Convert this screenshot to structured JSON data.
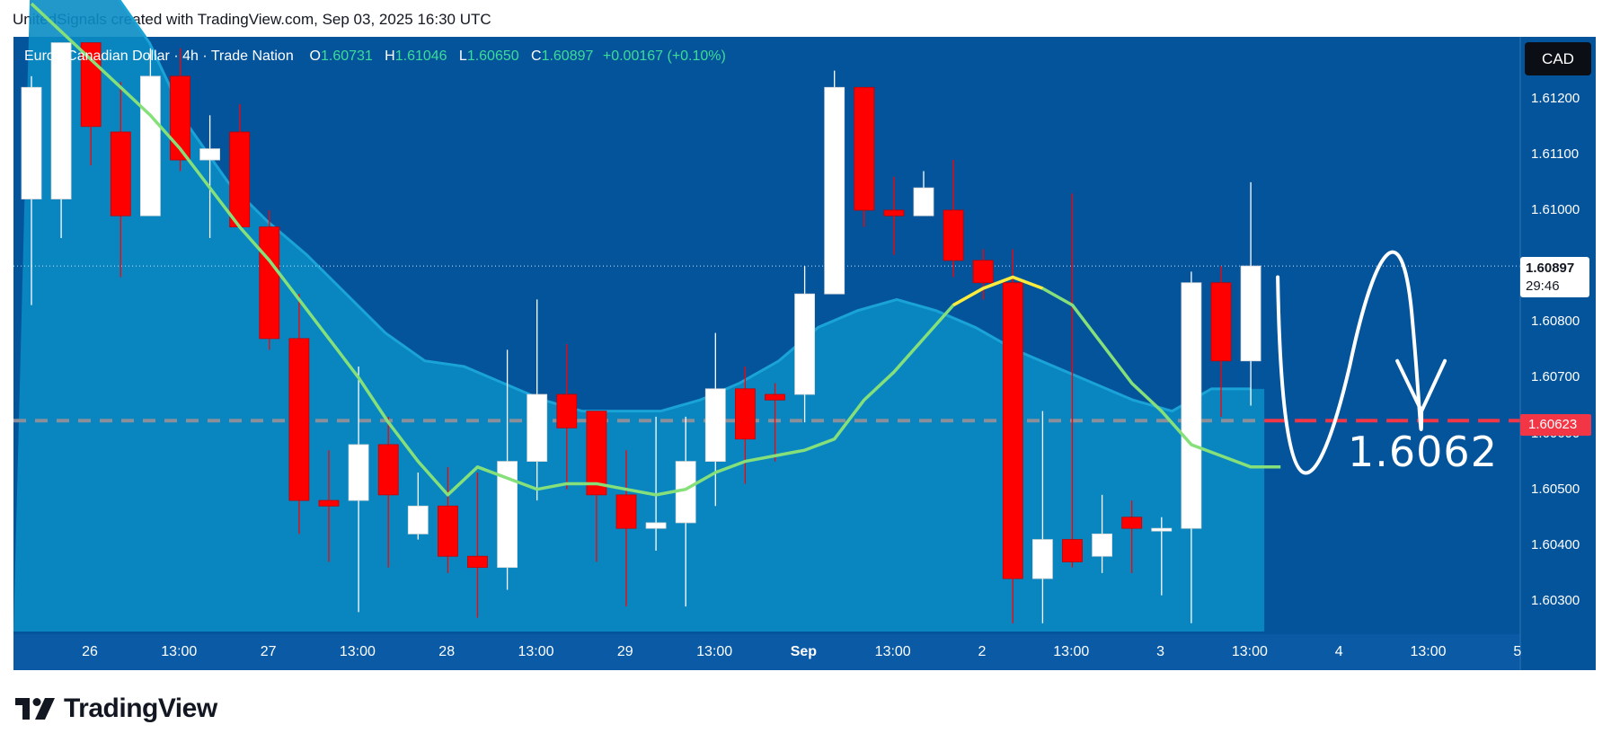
{
  "attribution": "UnitedSignals created with TradingView.com, Sep 03, 2025 16:30 UTC",
  "legend": {
    "symbol": "Euro / Canadian Dollar · 4h · Trade Nation",
    "o_label": "O",
    "o_value": "1.60731",
    "h_label": "H",
    "h_value": "1.61046",
    "l_label": "L",
    "l_value": "1.60650",
    "c_label": "C",
    "c_value": "1.60897",
    "change": "+0.00167 (+0.10%)"
  },
  "currency_badge": "CAD",
  "last_price": {
    "price": "1.60897",
    "countdown": "29:46"
  },
  "horizontal_line": {
    "value": 1.60623,
    "label": "1.60623"
  },
  "annotation_text": "1.6062",
  "logo_text": "TradingView",
  "colors": {
    "background": "#04549c",
    "up_candle": "#ffffff",
    "down_candle": "#ff0000",
    "band_fill": "#0a8cc4",
    "ma_line": "#86e07a",
    "ma_highlight": "#ffeb3b",
    "line_color": "#f23645"
  },
  "chart_data": {
    "type": "candlestick",
    "title": "Euro / Canadian Dollar · 4h · Trade Nation",
    "ylim": [
      1.6025,
      1.6128
    ],
    "y_ticks": [
      "1.61200",
      "1.61100",
      "1.61000",
      "1.60800",
      "1.60700",
      "1.60600",
      "1.60500",
      "1.60400",
      "1.60300"
    ],
    "x_labels": [
      {
        "label": "26",
        "bold": false
      },
      {
        "label": "13:00",
        "bold": false
      },
      {
        "label": "27",
        "bold": false
      },
      {
        "label": "13:00",
        "bold": false
      },
      {
        "label": "28",
        "bold": false
      },
      {
        "label": "13:00",
        "bold": false
      },
      {
        "label": "29",
        "bold": false
      },
      {
        "label": "13:00",
        "bold": false
      },
      {
        "label": "Sep",
        "bold": true
      },
      {
        "label": "13:00",
        "bold": false
      },
      {
        "label": "2",
        "bold": false
      },
      {
        "label": "13:00",
        "bold": false
      },
      {
        "label": "3",
        "bold": false
      },
      {
        "label": "13:00",
        "bold": false
      },
      {
        "label": "4",
        "bold": false
      },
      {
        "label": "13:00",
        "bold": false
      },
      {
        "label": "5",
        "bold": false
      }
    ],
    "candles": [
      {
        "o": 1.6102,
        "h": 1.6124,
        "l": 1.6083,
        "c": 1.6122
      },
      {
        "o": 1.6102,
        "h": 1.613,
        "l": 1.6095,
        "c": 1.613
      },
      {
        "o": 1.613,
        "h": 1.613,
        "l": 1.6108,
        "c": 1.6115
      },
      {
        "o": 1.6114,
        "h": 1.6123,
        "l": 1.6088,
        "c": 1.6099
      },
      {
        "o": 1.6099,
        "h": 1.6129,
        "l": 1.6099,
        "c": 1.6124
      },
      {
        "o": 1.6124,
        "h": 1.6129,
        "l": 1.6107,
        "c": 1.6109
      },
      {
        "o": 1.6109,
        "h": 1.6117,
        "l": 1.6095,
        "c": 1.6111
      },
      {
        "o": 1.6114,
        "h": 1.6119,
        "l": 1.6097,
        "c": 1.6097
      },
      {
        "o": 1.6097,
        "h": 1.61,
        "l": 1.6075,
        "c": 1.6077
      },
      {
        "o": 1.6077,
        "h": 1.6085,
        "l": 1.6042,
        "c": 1.6048
      },
      {
        "o": 1.6048,
        "h": 1.6057,
        "l": 1.6037,
        "c": 1.6047
      },
      {
        "o": 1.6048,
        "h": 1.6072,
        "l": 1.6028,
        "c": 1.6058
      },
      {
        "o": 1.6058,
        "h": 1.6063,
        "l": 1.6036,
        "c": 1.6049
      },
      {
        "o": 1.6042,
        "h": 1.6053,
        "l": 1.6041,
        "c": 1.6047
      },
      {
        "o": 1.6047,
        "h": 1.6054,
        "l": 1.6035,
        "c": 1.6038
      },
      {
        "o": 1.6038,
        "h": 1.6053,
        "l": 1.6027,
        "c": 1.6036
      },
      {
        "o": 1.6036,
        "h": 1.6075,
        "l": 1.6032,
        "c": 1.6055
      },
      {
        "o": 1.6055,
        "h": 1.6084,
        "l": 1.6048,
        "c": 1.6067
      },
      {
        "o": 1.6067,
        "h": 1.6076,
        "l": 1.605,
        "c": 1.6061
      },
      {
        "o": 1.6064,
        "h": 1.6064,
        "l": 1.6037,
        "c": 1.6049
      },
      {
        "o": 1.6049,
        "h": 1.6057,
        "l": 1.6029,
        "c": 1.6043
      },
      {
        "o": 1.6043,
        "h": 1.6063,
        "l": 1.6039,
        "c": 1.6044
      },
      {
        "o": 1.6044,
        "h": 1.6063,
        "l": 1.6029,
        "c": 1.6055
      },
      {
        "o": 1.6055,
        "h": 1.6078,
        "l": 1.6047,
        "c": 1.6068
      },
      {
        "o": 1.6068,
        "h": 1.6072,
        "l": 1.6051,
        "c": 1.6059
      },
      {
        "o": 1.6067,
        "h": 1.6069,
        "l": 1.6055,
        "c": 1.6066
      },
      {
        "o": 1.6067,
        "h": 1.609,
        "l": 1.6062,
        "c": 1.6085
      },
      {
        "o": 1.6085,
        "h": 1.6125,
        "l": 1.6085,
        "c": 1.6122
      },
      {
        "o": 1.6122,
        "h": 1.6122,
        "l": 1.6097,
        "c": 1.61
      },
      {
        "o": 1.61,
        "h": 1.6106,
        "l": 1.6092,
        "c": 1.6099
      },
      {
        "o": 1.6099,
        "h": 1.6107,
        "l": 1.6099,
        "c": 1.6104
      },
      {
        "o": 1.61,
        "h": 1.6109,
        "l": 1.6088,
        "c": 1.6091
      },
      {
        "o": 1.6091,
        "h": 1.6093,
        "l": 1.6084,
        "c": 1.6087
      },
      {
        "o": 1.6087,
        "h": 1.6093,
        "l": 1.6026,
        "c": 1.6034
      },
      {
        "o": 1.6034,
        "h": 1.6064,
        "l": 1.6026,
        "c": 1.6041
      },
      {
        "o": 1.6041,
        "h": 1.6103,
        "l": 1.6036,
        "c": 1.6037
      },
      {
        "o": 1.6038,
        "h": 1.6049,
        "l": 1.6035,
        "c": 1.6042
      },
      {
        "o": 1.6045,
        "h": 1.6048,
        "l": 1.6035,
        "c": 1.6043
      },
      {
        "o": 1.6043,
        "h": 1.6045,
        "l": 1.6031,
        "c": 1.6043
      },
      {
        "o": 1.6043,
        "h": 1.6089,
        "l": 1.6026,
        "c": 1.6087
      },
      {
        "o": 1.6087,
        "h": 1.609,
        "l": 1.6063,
        "c": 1.6073
      },
      {
        "o": 1.6073,
        "h": 1.6105,
        "l": 1.6065,
        "c": 1.609
      }
    ],
    "ma": [
      1.6137,
      1.6132,
      1.6127,
      1.6122,
      1.6117,
      1.6111,
      1.6104,
      1.6097,
      1.6091,
      1.6084,
      1.6077,
      1.607,
      1.6062,
      1.6055,
      1.6049,
      1.6054,
      1.6052,
      1.605,
      1.6051,
      1.6051,
      1.605,
      1.6049,
      1.605,
      1.6053,
      1.6055,
      1.6056,
      1.6057,
      1.6059,
      1.6066,
      1.6071,
      1.6077,
      1.6083,
      1.6086,
      1.6088,
      1.6086,
      1.6083,
      1.6076,
      1.6069,
      1.6064,
      1.6058,
      1.6056,
      1.6054,
      1.6054
    ],
    "band_upper": [
      1.615,
      1.6145,
      1.614,
      1.613,
      1.6115,
      1.6105,
      1.6098,
      1.6092,
      1.6085,
      1.6078,
      1.6073,
      1.6072,
      1.6069,
      1.6066,
      1.6064,
      1.6064,
      1.6064,
      1.6066,
      1.6069,
      1.6073,
      1.6079,
      1.6082,
      1.6084,
      1.6082,
      1.6079,
      1.6075,
      1.6072,
      1.6069,
      1.6066,
      1.6064,
      1.6068,
      1.6068
    ],
    "highlight_range": [
      31,
      34
    ],
    "plan_path_label": "1.6062"
  }
}
